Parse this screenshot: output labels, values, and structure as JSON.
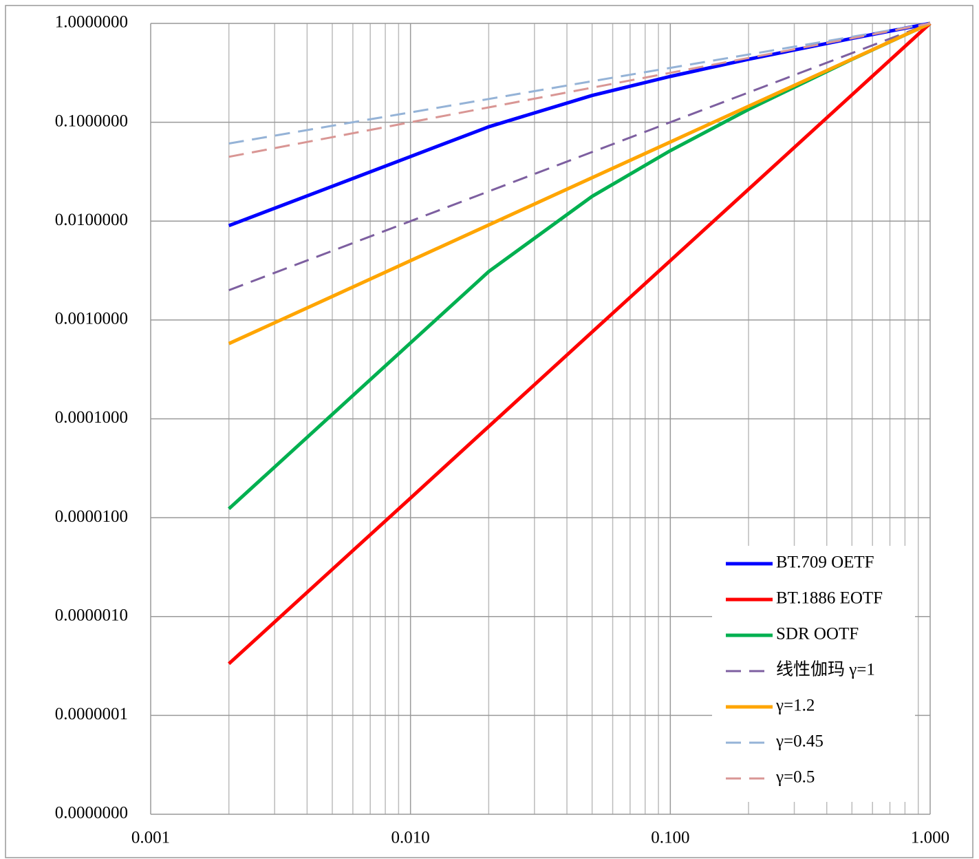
{
  "chart_data": {
    "type": "line",
    "log_x": true,
    "log_y": true,
    "grid": true,
    "legend": "lower right",
    "x": [
      0.002,
      0.005,
      0.01,
      0.018,
      0.02,
      0.05,
      0.1,
      0.2,
      0.5,
      1
    ],
    "series": [
      {
        "name": "BT.709 OETF",
        "color": "#0000ff",
        "dash": false,
        "values": [
          0.009,
          0.0225,
          0.045,
          0.081,
          0.09,
          0.1865,
          0.2909,
          0.4337,
          0.7055,
          1
        ]
      },
      {
        "name": "BT.1886 EOTF",
        "color": "#ff0000",
        "dash": false,
        "values": [
          3.33e-07,
          3e-06,
          1.58e-05,
          6.5e-05,
          8.37e-05,
          0.000755,
          0.00398,
          0.021,
          0.1895,
          1
        ]
      },
      {
        "name": "SDR OOTF",
        "color": "#00b050",
        "dash": false,
        "values": [
          1.23e-05,
          0.000111,
          0.000586,
          0.0024,
          0.00309,
          0.0178,
          0.0516,
          0.1347,
          0.433,
          1
        ]
      },
      {
        "name": "线性伽玛 γ=1",
        "color": "#7d5fa0",
        "dash": true,
        "values": [
          0.002,
          0.005,
          0.01,
          0.018,
          0.02,
          0.05,
          0.1,
          0.2,
          0.5,
          1
        ]
      },
      {
        "name": "γ=1.2",
        "color": "#ffa500",
        "dash": false,
        "values": [
          0.000577,
          0.00173,
          0.00398,
          0.00806,
          0.00915,
          0.0275,
          0.0631,
          0.145,
          0.435,
          1
        ]
      },
      {
        "name": "γ=0.45",
        "color": "#95b3d7",
        "dash": true,
        "values": [
          0.061,
          0.0922,
          0.1259,
          0.164,
          0.1719,
          0.2599,
          0.3548,
          0.4846,
          0.732,
          1
        ]
      },
      {
        "name": "γ=0.5",
        "color": "#d99694",
        "dash": true,
        "values": [
          0.0447,
          0.0707,
          0.1,
          0.1342,
          0.1414,
          0.2236,
          0.3162,
          0.4472,
          0.7071,
          1
        ]
      }
    ],
    "xlim": [
      0.001,
      1
    ],
    "ylim": [
      1e-08,
      1
    ],
    "xticks": [
      {
        "value": 0.001,
        "label": "0.001"
      },
      {
        "value": 0.01,
        "label": "0.010"
      },
      {
        "value": 0.1,
        "label": "0.100"
      },
      {
        "value": 1,
        "label": "1.000"
      }
    ],
    "xminorticks": [
      0.002,
      0.003,
      0.004,
      0.005,
      0.006,
      0.007,
      0.008,
      0.009,
      0.02,
      0.03,
      0.04,
      0.05,
      0.06,
      0.07,
      0.08,
      0.09,
      0.2,
      0.3,
      0.4,
      0.5,
      0.6,
      0.7,
      0.8,
      0.9
    ],
    "yticks": [
      {
        "value": 1e-08,
        "label": "0.0000000"
      },
      {
        "value": 1e-07,
        "label": "0.0000001"
      },
      {
        "value": 1e-06,
        "label": "0.0000010"
      },
      {
        "value": 1e-05,
        "label": "0.0000100"
      },
      {
        "value": 0.0001,
        "label": "0.0001000"
      },
      {
        "value": 0.001,
        "label": "0.0010000"
      },
      {
        "value": 0.01,
        "label": "0.0100000"
      },
      {
        "value": 0.1,
        "label": "0.1000000"
      },
      {
        "value": 1,
        "label": "1.0000000"
      }
    ]
  }
}
